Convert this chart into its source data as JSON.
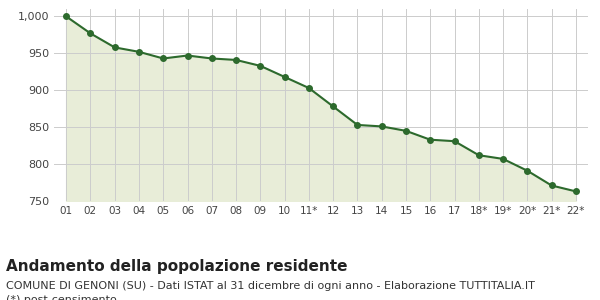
{
  "x_labels": [
    "01",
    "02",
    "03",
    "04",
    "05",
    "06",
    "07",
    "08",
    "09",
    "10",
    "11*",
    "12",
    "13",
    "14",
    "15",
    "16",
    "17",
    "18*",
    "19*",
    "20*",
    "21*",
    "22*"
  ],
  "y_values": [
    1000,
    977,
    958,
    952,
    943,
    947,
    943,
    941,
    933,
    918,
    903,
    878,
    853,
    851,
    845,
    833,
    831,
    812,
    807,
    791,
    771,
    763
  ],
  "line_color": "#2d6a2d",
  "fill_color": "#e8edd8",
  "marker_color": "#2d6a2d",
  "background_color": "#ffffff",
  "plot_bg_color": "#ffffff",
  "grid_color": "#cccccc",
  "ylim": [
    750,
    1010
  ],
  "yticks": [
    750,
    800,
    850,
    900,
    950,
    1000
  ],
  "title": "Andamento della popolazione residente",
  "subtitle": "COMUNE DI GENONI (SU) - Dati ISTAT al 31 dicembre di ogni anno - Elaborazione TUTTITALIA.IT",
  "footnote": "(*) post-censimento",
  "title_fontsize": 11,
  "subtitle_fontsize": 8,
  "footnote_fontsize": 8
}
